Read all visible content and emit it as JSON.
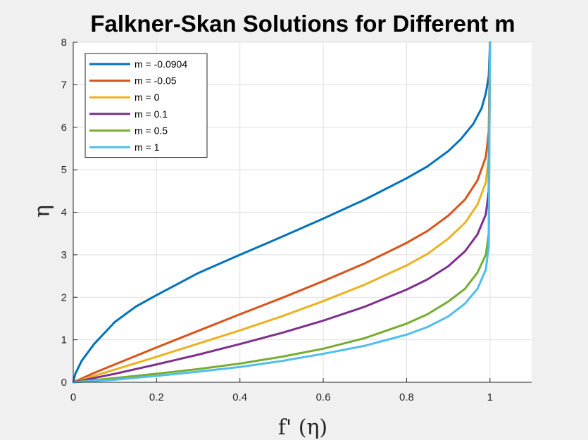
{
  "chart_data": {
    "type": "line",
    "title": "Falkner-Skan Solutions for Different m",
    "xlabel": "f' (η)",
    "ylabel": "η",
    "xlim": [
      0,
      1.1
    ],
    "ylim": [
      0,
      8
    ],
    "xticks": [
      0,
      0.2,
      0.4,
      0.6,
      0.8,
      1
    ],
    "xtick_labels": [
      "0",
      "0.2",
      "0.4",
      "0.6",
      "0.8",
      "1"
    ],
    "yticks": [
      0,
      1,
      2,
      3,
      4,
      5,
      6,
      7,
      8
    ],
    "ytick_labels": [
      "0",
      "1",
      "2",
      "3",
      "4",
      "5",
      "6",
      "7",
      "8"
    ],
    "grid": true,
    "legend_position": "top-left",
    "series": [
      {
        "name": "m = -0.0904",
        "color": "#0072BD",
        "x": [
          0,
          0.005,
          0.02,
          0.05,
          0.1,
          0.15,
          0.2,
          0.3,
          0.4,
          0.5,
          0.6,
          0.7,
          0.8,
          0.85,
          0.9,
          0.93,
          0.96,
          0.98,
          0.99,
          0.997,
          1.0
        ],
        "y": [
          0,
          0.2,
          0.5,
          0.9,
          1.42,
          1.78,
          2.05,
          2.57,
          3.0,
          3.42,
          3.85,
          4.3,
          4.8,
          5.08,
          5.44,
          5.72,
          6.08,
          6.45,
          6.8,
          7.2,
          8.0
        ]
      },
      {
        "name": "m = -0.05",
        "color": "#D95319",
        "x": [
          0,
          0.05,
          0.1,
          0.2,
          0.3,
          0.4,
          0.5,
          0.6,
          0.7,
          0.8,
          0.85,
          0.9,
          0.94,
          0.97,
          0.99,
          0.997,
          1.0
        ],
        "y": [
          0,
          0.22,
          0.42,
          0.82,
          1.21,
          1.6,
          1.98,
          2.38,
          2.8,
          3.28,
          3.56,
          3.92,
          4.3,
          4.75,
          5.3,
          5.9,
          8.0
        ]
      },
      {
        "name": "m = 0",
        "color": "#EDB120",
        "x": [
          0,
          0.05,
          0.1,
          0.2,
          0.3,
          0.4,
          0.5,
          0.6,
          0.7,
          0.8,
          0.85,
          0.9,
          0.94,
          0.97,
          0.99,
          0.997,
          1.0
        ],
        "y": [
          0,
          0.15,
          0.3,
          0.6,
          0.91,
          1.22,
          1.55,
          1.91,
          2.3,
          2.75,
          3.02,
          3.38,
          3.75,
          4.18,
          4.7,
          5.3,
          8.0
        ]
      },
      {
        "name": "m = 0.1",
        "color": "#7E2F8E",
        "x": [
          0,
          0.05,
          0.1,
          0.2,
          0.3,
          0.4,
          0.5,
          0.6,
          0.7,
          0.8,
          0.85,
          0.9,
          0.94,
          0.97,
          0.99,
          0.997,
          1.0
        ],
        "y": [
          0,
          0.1,
          0.2,
          0.42,
          0.65,
          0.9,
          1.16,
          1.45,
          1.78,
          2.18,
          2.42,
          2.73,
          3.08,
          3.48,
          3.95,
          4.5,
          8.0
        ]
      },
      {
        "name": "m = 0.5",
        "color": "#77AC30",
        "x": [
          0,
          0.05,
          0.1,
          0.2,
          0.3,
          0.4,
          0.5,
          0.6,
          0.7,
          0.8,
          0.85,
          0.9,
          0.94,
          0.97,
          0.99,
          0.997,
          1.0
        ],
        "y": [
          0,
          0.05,
          0.1,
          0.2,
          0.31,
          0.44,
          0.6,
          0.79,
          1.04,
          1.38,
          1.6,
          1.9,
          2.2,
          2.58,
          3.0,
          3.5,
          8.0
        ]
      },
      {
        "name": "m = 1",
        "color": "#4DBEEE",
        "x": [
          0,
          0.05,
          0.1,
          0.2,
          0.3,
          0.4,
          0.5,
          0.6,
          0.7,
          0.8,
          0.85,
          0.9,
          0.94,
          0.97,
          0.99,
          0.997,
          1.0
        ],
        "y": [
          0,
          0.03,
          0.06,
          0.15,
          0.25,
          0.36,
          0.5,
          0.67,
          0.86,
          1.12,
          1.3,
          1.55,
          1.85,
          2.2,
          2.65,
          3.2,
          8.0
        ]
      }
    ]
  }
}
